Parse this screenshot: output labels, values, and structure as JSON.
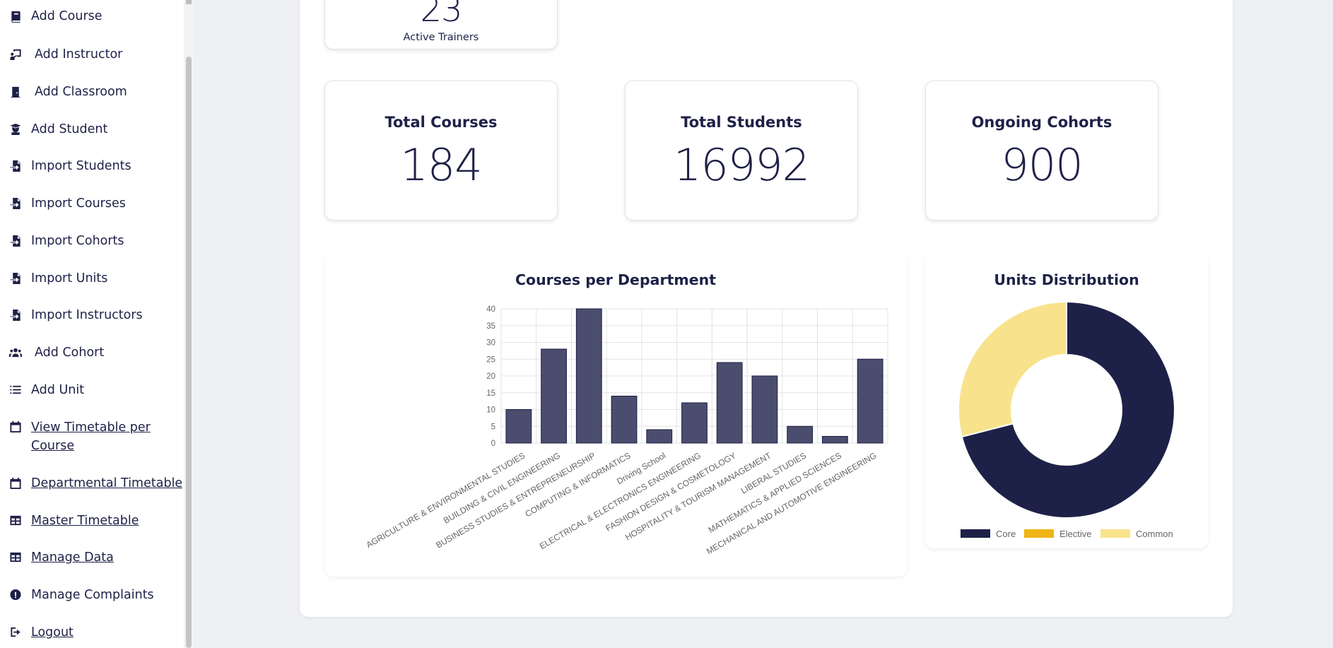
{
  "sidebar": {
    "items": [
      {
        "label": "Add Course",
        "icon": "book-icon"
      },
      {
        "label": "Add Instructor",
        "icon": "chalkboard-teacher-icon"
      },
      {
        "label": "Add Classroom",
        "icon": "door-icon"
      },
      {
        "label": "Add Student",
        "icon": "graduate-icon"
      },
      {
        "label": "Import Students",
        "icon": "file-import-icon"
      },
      {
        "label": "Import Courses",
        "icon": "file-import-icon"
      },
      {
        "label": "Import Cohorts",
        "icon": "file-import-icon"
      },
      {
        "label": "Import Units",
        "icon": "file-import-icon"
      },
      {
        "label": "Import Instructors",
        "icon": "file-import-icon"
      },
      {
        "label": "Add Cohort",
        "icon": "users-icon"
      },
      {
        "label": "Add Unit",
        "icon": "list-icon"
      },
      {
        "label": "View Timetable per Course",
        "icon": "calendar-icon"
      },
      {
        "label": "Departmental Timetable",
        "icon": "calendar-icon"
      },
      {
        "label": "Master Timetable",
        "icon": "table-icon"
      },
      {
        "label": "Manage Data",
        "icon": "table-icon"
      },
      {
        "label": "Manage Complaints",
        "icon": "exclamation-circle-icon"
      },
      {
        "label": "Logout",
        "icon": "sign-out-icon"
      }
    ]
  },
  "stats": {
    "trainers": {
      "value": "23",
      "label": "Active Trainers"
    },
    "courses": {
      "title": "Total Courses",
      "value": "184"
    },
    "students": {
      "title": "Total Students",
      "value": "16992"
    },
    "cohorts": {
      "title": "Ongoing Cohorts",
      "value": "900"
    }
  },
  "colors": {
    "navy": "#1e2147",
    "bar": "#4b4d6e",
    "elective": "#f0b414",
    "common": "#f8e38c"
  },
  "chart_data": [
    {
      "type": "bar",
      "title": "Courses per Department",
      "categories": [
        "AGRICULTURE & ENVIRONMENTAL STUDIES",
        "BUILDING & CIVIL ENGINEERING",
        "BUSINESS STUDIES & ENTREPRENEURSHIP",
        "COMPUTING & INFORMATICS",
        "Driving School",
        "ELECTRICAL & ELECTRONICS ENGINEERING",
        "FASHION DESIGN & COSMETOLOGY",
        "HOSPITALITY & TOURISM MANAGEMENT",
        "LIBERAL STUDIES",
        "MATHEMATICS & APPLIED SCIENCES",
        "MECHANICAL AND AUTOMOTIVE ENGINEERING"
      ],
      "values": [
        10,
        28,
        40,
        14,
        4,
        12,
        24,
        20,
        5,
        2,
        25
      ],
      "ylim": [
        0,
        40
      ],
      "yticks": [
        0,
        5,
        10,
        15,
        20,
        25,
        30,
        35,
        40
      ],
      "grid": true
    },
    {
      "type": "pie",
      "title": "Units Distribution",
      "labels": [
        "Core",
        "Elective",
        "Common"
      ],
      "values": [
        71,
        0,
        29
      ],
      "colors": [
        "#1e2147",
        "#f0b414",
        "#f8e38c"
      ],
      "legend": "bottom"
    }
  ]
}
